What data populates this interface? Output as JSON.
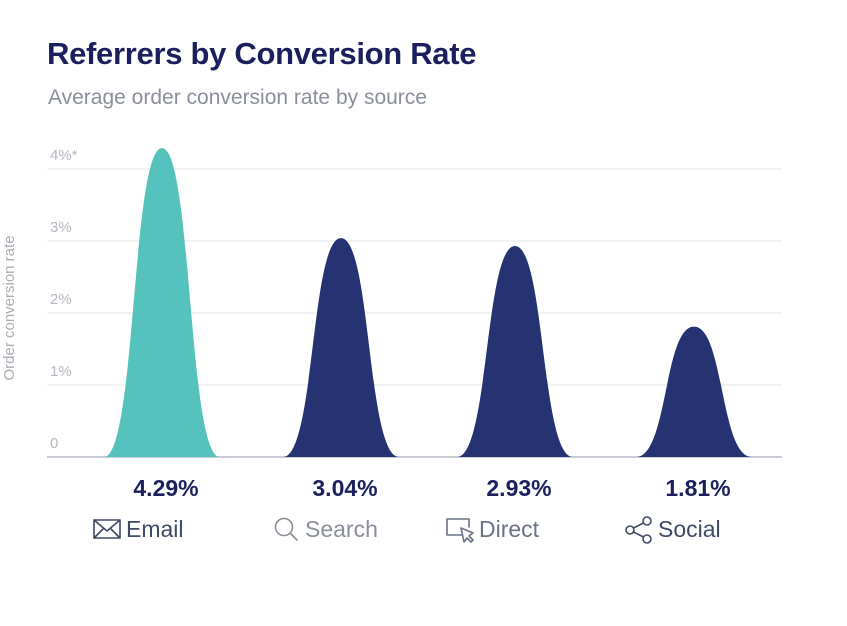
{
  "chart_data": {
    "type": "area",
    "title": "Referrers by Conversion Rate",
    "subtitle": "Average order conversion rate by source",
    "ylabel": "Order conversion rate",
    "xlabel": "",
    "ylim": [
      0,
      4
    ],
    "y_ticks": [
      "0",
      "1%",
      "2%",
      "3%",
      "4%*"
    ],
    "grid": true,
    "categories": [
      "Email",
      "Search",
      "Direct",
      "Social"
    ],
    "icons": [
      "envelope-icon",
      "search-icon",
      "cursor-click-icon",
      "share-icon"
    ],
    "values": [
      4.29,
      3.04,
      2.93,
      1.81
    ],
    "data_labels": [
      "4.29%",
      "3.04%",
      "2.93%",
      "1.81%"
    ],
    "colors": [
      "#56c2bd",
      "#253373",
      "#253373",
      "#253373"
    ],
    "category_label_colors": [
      "#3e4a66",
      "#8a8f99",
      "#6b7285",
      "#3e4a66"
    ]
  }
}
